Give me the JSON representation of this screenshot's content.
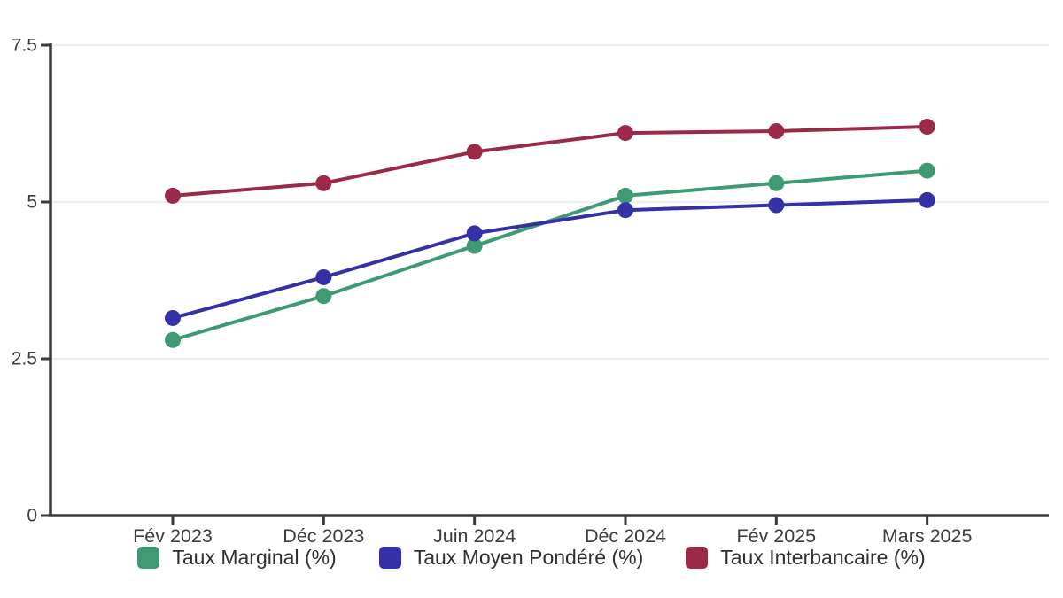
{
  "chart_data": {
    "type": "line",
    "title": "",
    "xlabel": "",
    "ylabel": "",
    "categories": [
      "Fév 2023",
      "Déc 2023",
      "Juin 2024",
      "Déc 2024",
      "Fév 2025",
      "Mars 2025"
    ],
    "series": [
      {
        "name": "Taux Marginal (%)",
        "color": "#3F9A74",
        "values": [
          2.8,
          3.5,
          4.3,
          5.1,
          5.3,
          5.5
        ]
      },
      {
        "name": "Taux Moyen Pondéré (%)",
        "color": "#3431A6",
        "values": [
          3.15,
          3.8,
          4.5,
          4.87,
          4.95,
          5.03
        ]
      },
      {
        "name": "Taux Interbancaire (%)",
        "color": "#9B2A49",
        "values": [
          5.1,
          5.3,
          5.8,
          6.1,
          6.13,
          6.2
        ]
      }
    ],
    "ylim": [
      0,
      7.5
    ],
    "yticks": [
      0,
      2.5,
      5,
      7.5
    ],
    "ytick_labels": [
      "0",
      "2.5",
      "5",
      "7.5"
    ],
    "grid": true,
    "legend_position": "bottom",
    "marker": "circle"
  },
  "colors": {
    "background": "#FFFFFF",
    "axis": "#3A3A3A",
    "grid": "#E9E9E9",
    "tick_label": "#3C3C3C",
    "legend_text": "#2F2F2F"
  }
}
